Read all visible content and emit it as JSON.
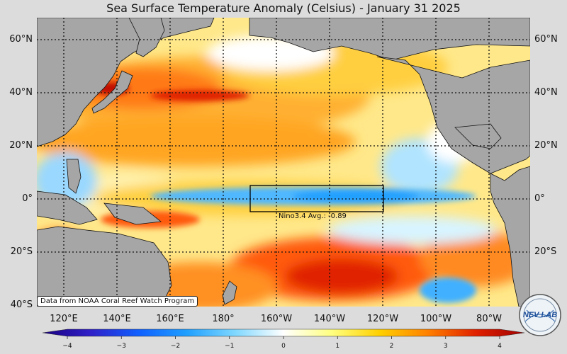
{
  "title": "Sea Surface Temperature Anomaly (Celsius) - January 31 2025",
  "latitude_labels": [
    "60°N",
    "40°N",
    "20°N",
    "0°",
    "20°S",
    "40°S"
  ],
  "longitude_labels": [
    "120°E",
    "140°E",
    "160°E",
    "180°",
    "160°W",
    "140°W",
    "120°W",
    "100°W",
    "80°W"
  ],
  "nino_box_label": "Nino3.4 Avg.: -0.89",
  "credit": "Data from NOAA Coral Reef Watch Program",
  "colorbar": {
    "min": -4,
    "max": 4,
    "ticks": [
      "−4",
      "−3",
      "−2",
      "−1",
      "0",
      "1",
      "2",
      "3",
      "4"
    ],
    "colors": [
      "#1a0080",
      "#2f20c8",
      "#1060ff",
      "#20a0ff",
      "#80d8ff",
      "#ffffff",
      "#ffff80",
      "#ffd000",
      "#ff8000",
      "#e02000",
      "#a00000"
    ]
  },
  "logo_text": "NEV LAB",
  "colors": {
    "land": "#a6a6a6",
    "warm": "#ff9020",
    "cool": "#60c8ff",
    "background": "#dcdcdc"
  }
}
